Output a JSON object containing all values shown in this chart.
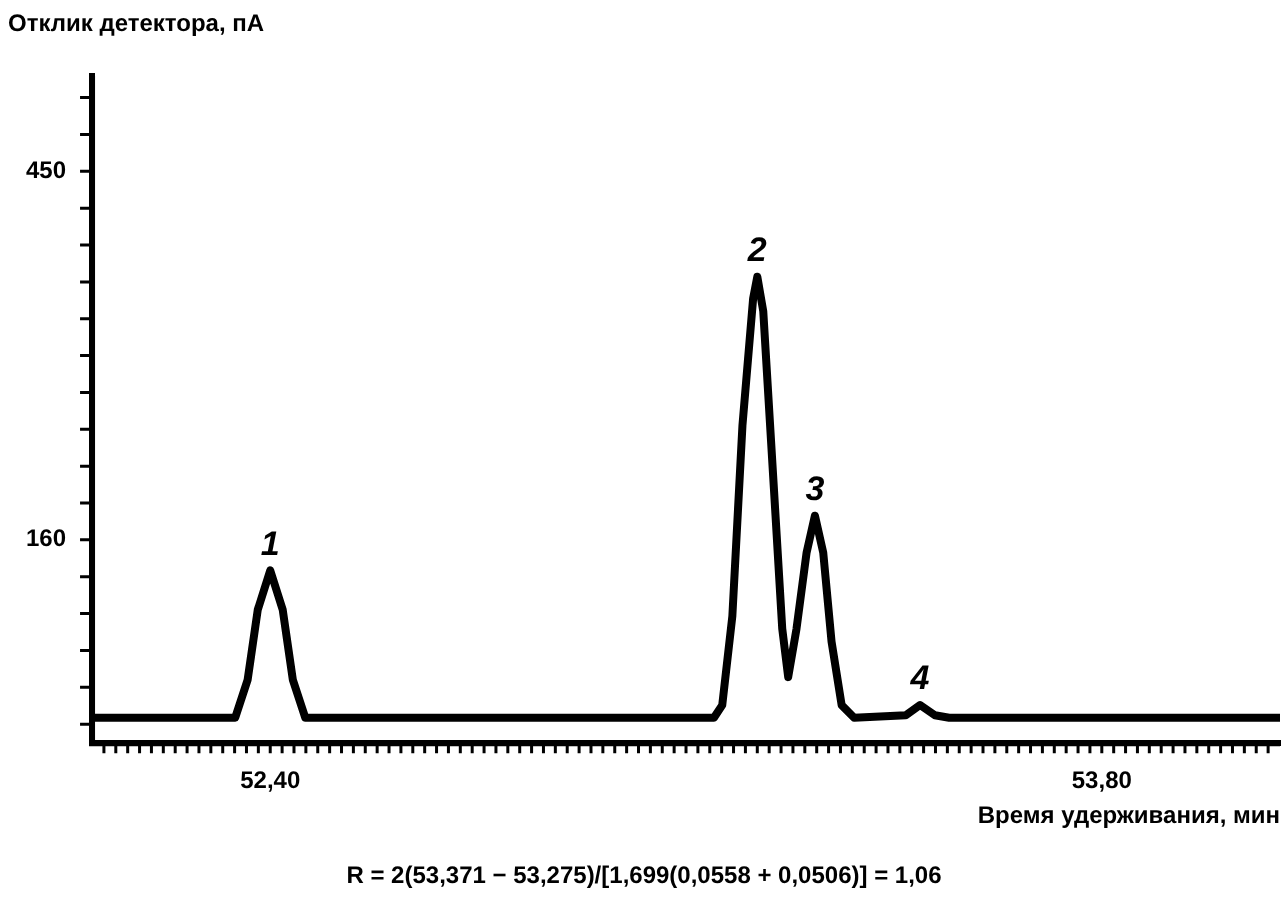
{
  "chart_data": {
    "type": "line",
    "xlabel": "Время удерживания, мин",
    "ylabel": "Отклик детектора, пА",
    "x": [
      52.1,
      52.341,
      52.362,
      52.379,
      52.4,
      52.421,
      52.438,
      52.459,
      53.147,
      53.161,
      53.178,
      53.195,
      53.213,
      53.22,
      53.23,
      53.248,
      53.262,
      53.272,
      53.286,
      53.303,
      53.317,
      53.331,
      53.345,
      53.362,
      53.383,
      53.47,
      53.494,
      53.519,
      53.543,
      54.1
    ],
    "series": [
      {
        "color": "#000000",
        "values": [
          20,
          20,
          50,
          105,
          136,
          105,
          50,
          20,
          20,
          30,
          100,
          250,
          350,
          367,
          340,
          200,
          90,
          52,
          90,
          150,
          179,
          150,
          80,
          30,
          20,
          22,
          30,
          22,
          20,
          20
        ]
      }
    ],
    "xlim": [
      52.1,
      54.1
    ],
    "ylim": [
      0,
      525
    ],
    "xticks": [
      {
        "value": 52.4,
        "label": "52,40"
      },
      {
        "value": 53.8,
        "label": "53,80"
      }
    ],
    "yticks": [
      160,
      450
    ],
    "grid": false,
    "legend": false,
    "marker": "none",
    "line_style": "solid",
    "annotations": [
      {
        "text": "1",
        "x": 52.4,
        "y": 136
      },
      {
        "text": "2",
        "x": 53.22,
        "y": 367
      },
      {
        "text": "3",
        "x": 53.317,
        "y": 179
      },
      {
        "text": "4",
        "x": 53.494,
        "y": 30
      },
      "R = 2(53,371 − 53,275)/[1,699(0,0558 + 0,0506)] = 1,06"
    ]
  }
}
